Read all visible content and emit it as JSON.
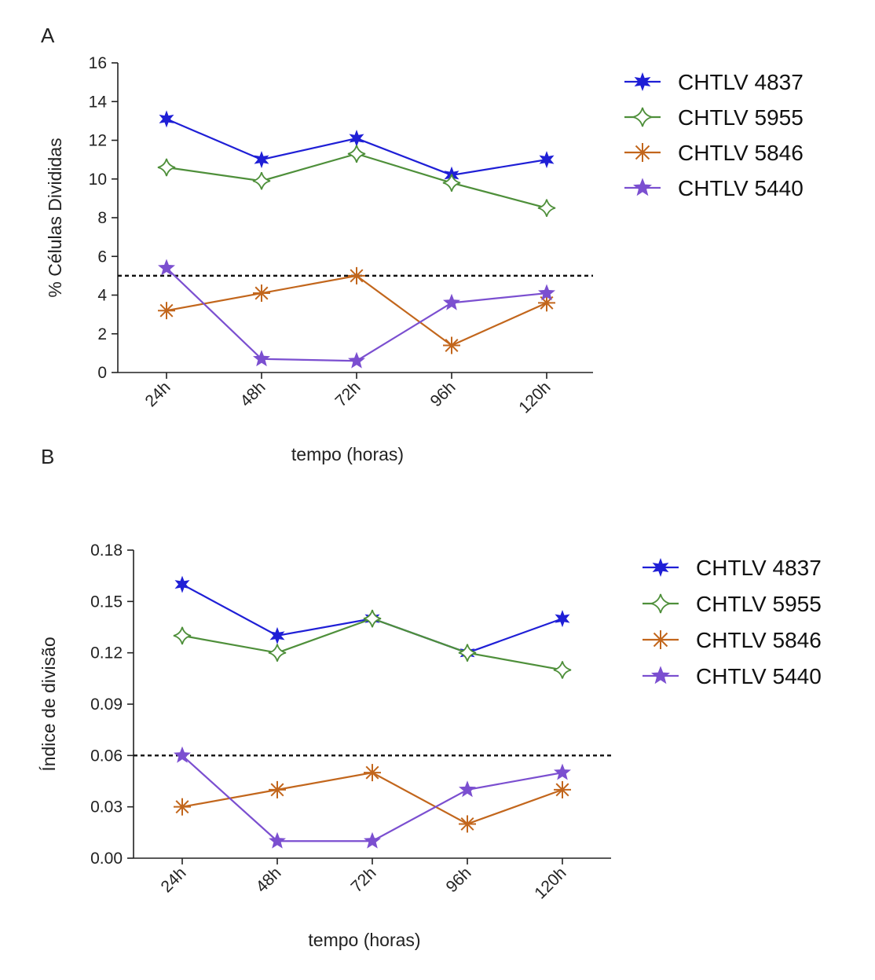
{
  "chart_data": [
    {
      "panel_label": "A",
      "type": "line",
      "xlabel": "tempo (horas)",
      "ylabel": "% Células Divididas",
      "categories": [
        "24h",
        "48h",
        "72h",
        "96h",
        "120h"
      ],
      "ylim": [
        0,
        16
      ],
      "yticks": [
        "0",
        "2",
        "4",
        "6",
        "8",
        "10",
        "12",
        "14",
        "16"
      ],
      "threshold": 5,
      "legend_position": "top-right",
      "series": [
        {
          "name": "CHTLV 4837",
          "values": [
            13.1,
            11.0,
            12.1,
            10.2,
            11.0
          ],
          "color": "#1f1fd6",
          "marker": "star6"
        },
        {
          "name": "CHTLV 5955",
          "values": [
            10.6,
            9.9,
            11.3,
            9.8,
            8.5
          ],
          "color": "#4e8f3a",
          "marker": "diamond-open"
        },
        {
          "name": "CHTLV 5846",
          "values": [
            3.2,
            4.1,
            5.0,
            1.4,
            3.6
          ],
          "color": "#c2661c",
          "marker": "asterisk"
        },
        {
          "name": "CHTLV 5440",
          "values": [
            5.4,
            0.7,
            0.6,
            3.6,
            4.1
          ],
          "color": "#7b4fd0",
          "marker": "star5"
        }
      ]
    },
    {
      "panel_label": "B",
      "type": "line",
      "xlabel": "tempo (horas)",
      "ylabel": "Índice de divisão",
      "categories": [
        "24h",
        "48h",
        "72h",
        "96h",
        "120h"
      ],
      "ylim": [
        0,
        0.18
      ],
      "yticks": [
        "0.00",
        "0.03",
        "0.06",
        "0.09",
        "0.12",
        "0.15",
        "0.18"
      ],
      "threshold": 0.06,
      "legend_position": "top-right",
      "series": [
        {
          "name": "CHTLV 4837",
          "values": [
            0.16,
            0.13,
            0.14,
            0.12,
            0.14
          ],
          "color": "#1f1fd6",
          "marker": "star6"
        },
        {
          "name": "CHTLV 5955",
          "values": [
            0.13,
            0.12,
            0.14,
            0.12,
            0.11
          ],
          "color": "#4e8f3a",
          "marker": "diamond-open"
        },
        {
          "name": "CHTLV 5846",
          "values": [
            0.03,
            0.04,
            0.05,
            0.02,
            0.04
          ],
          "color": "#c2661c",
          "marker": "asterisk"
        },
        {
          "name": "CHTLV 5440",
          "values": [
            0.06,
            0.01,
            0.01,
            0.04,
            0.05
          ],
          "color": "#7b4fd0",
          "marker": "star5"
        }
      ]
    }
  ]
}
